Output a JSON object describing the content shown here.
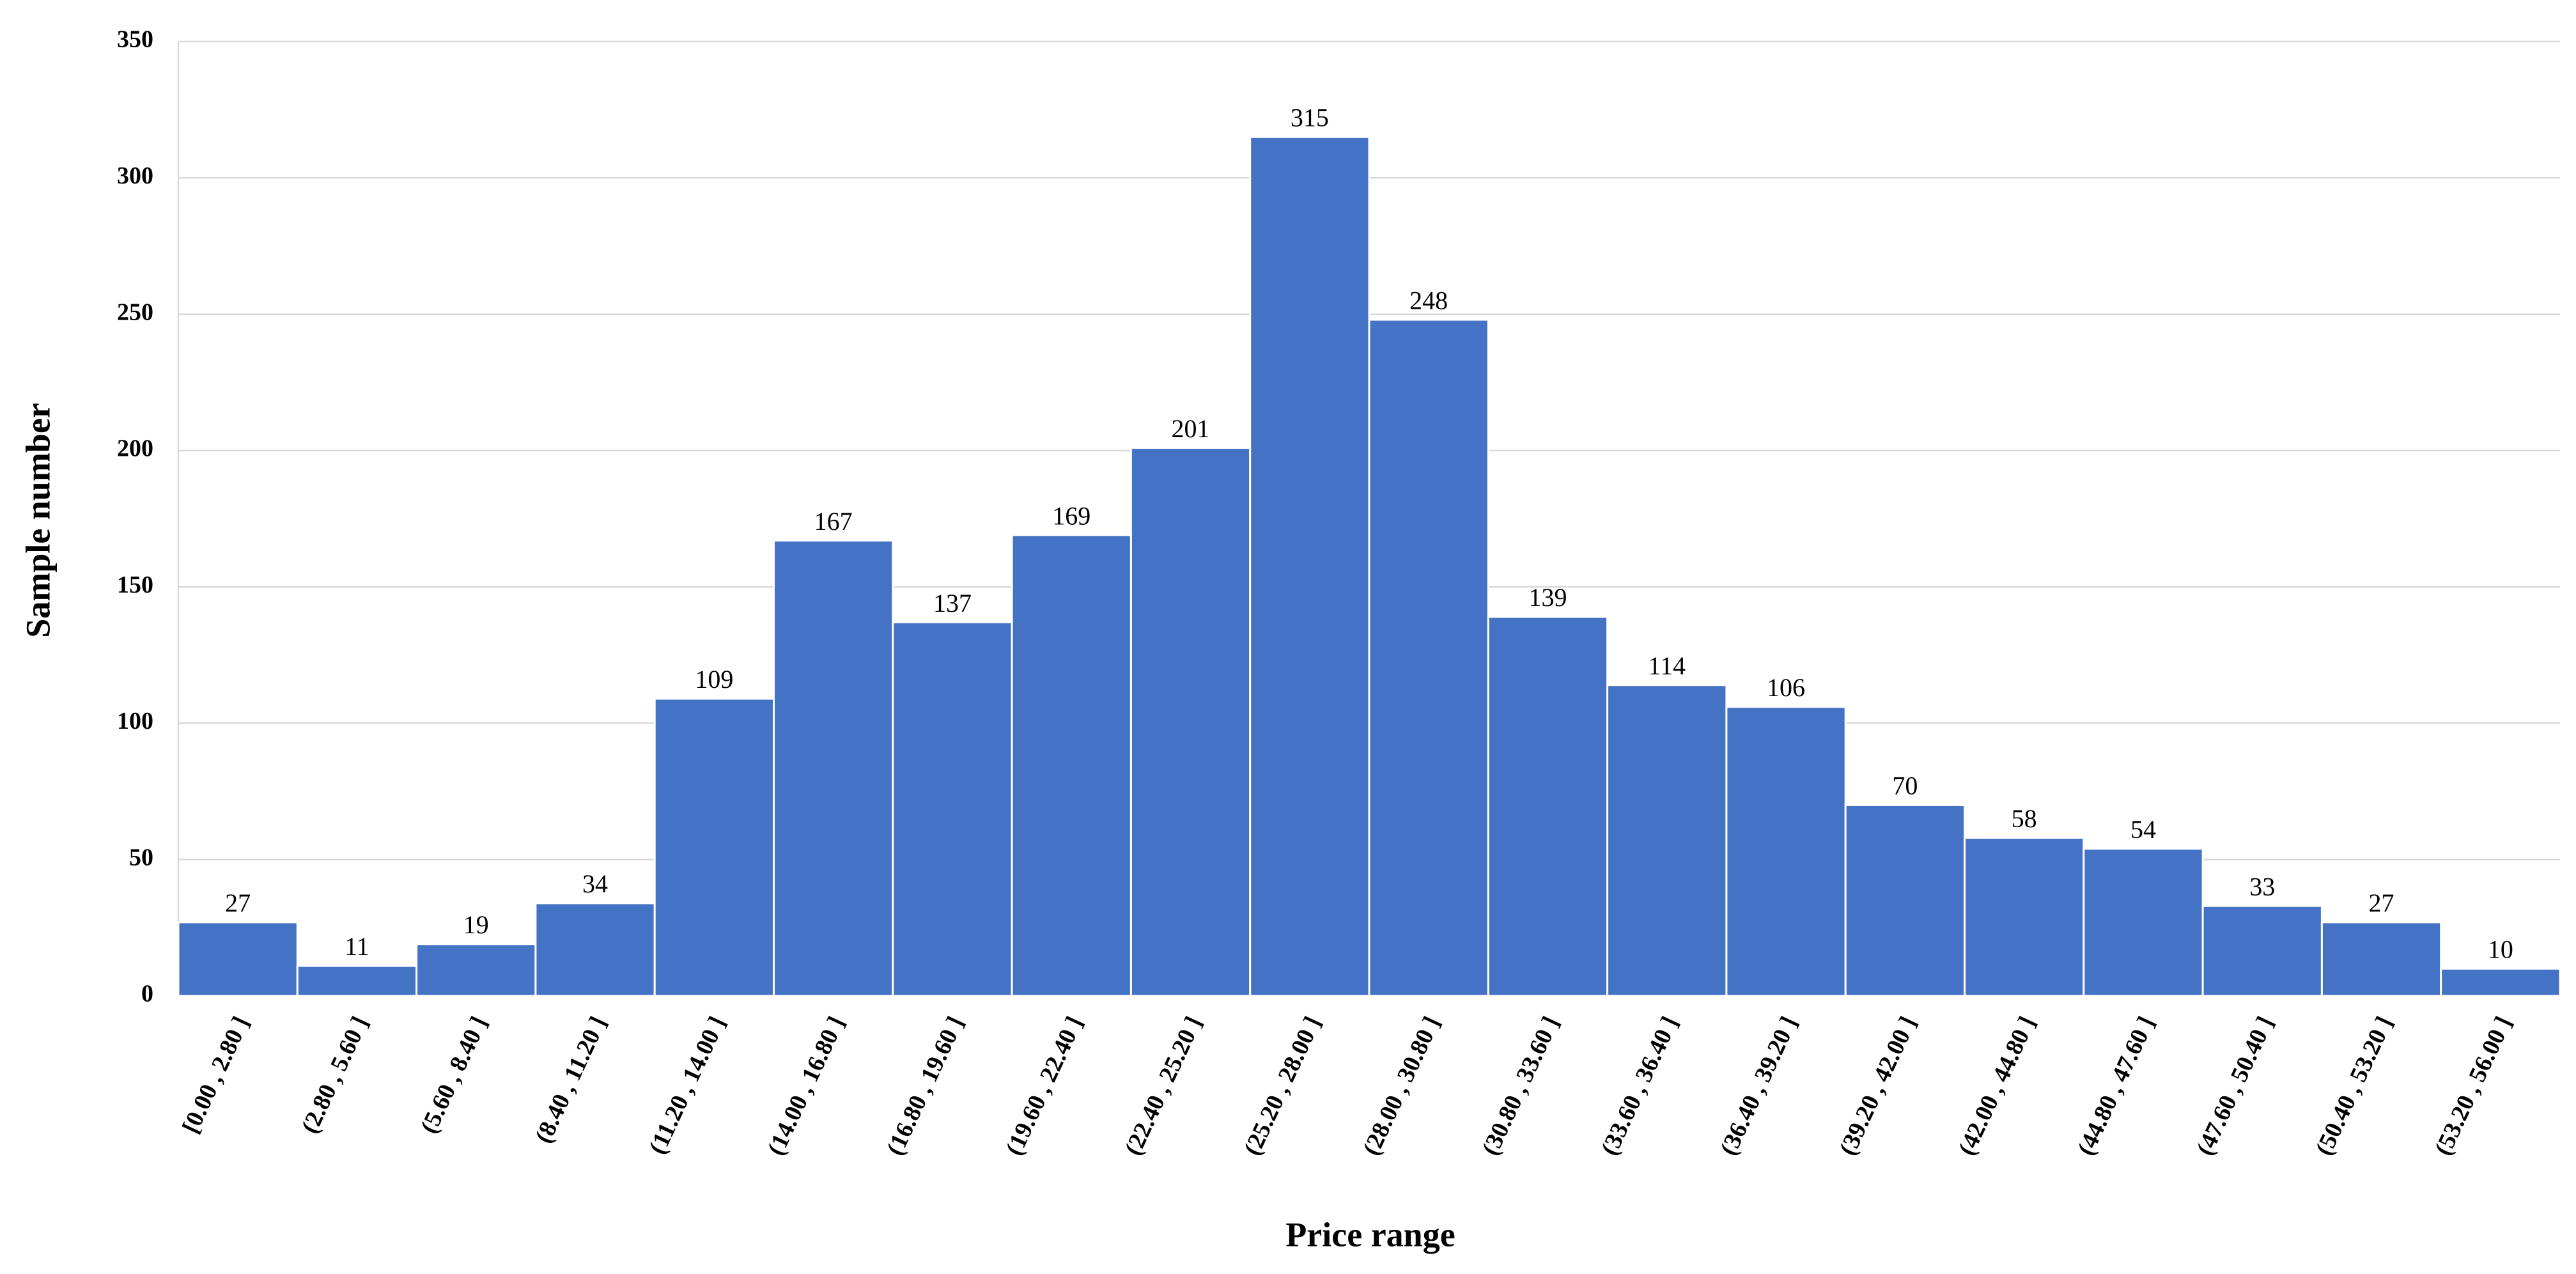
{
  "chart_data": {
    "type": "bar",
    "x_label": "Price range",
    "y_label": "Sample number",
    "categories": [
      "[0.00 , 2.80 ]",
      "(2.80 , 5.60 ]",
      "(5.60 , 8.40 ]",
      "(8.40 , 11.20 ]",
      "(11.20 , 14.00 ]",
      "(14.00 , 16.80 ]",
      "(16.80 , 19.60 ]",
      "(19.60 , 22.40 ]",
      "(22.40 , 25.20 ]",
      "(25.20 , 28.00 ]",
      "(28.00 , 30.80 ]",
      "(30.80 , 33.60 ]",
      "(33.60 , 36.40 ]",
      "(36.40 , 39.20 ]",
      "(39.20 , 42.00 ]",
      "(42.00 , 44.80 ]",
      "(44.80 , 47.60 ]",
      "(47.60 , 50.40 ]",
      "(50.40 , 53.20 ]",
      "(53.20 , 56.00 ]"
    ],
    "values": [
      27,
      11,
      19,
      34,
      109,
      167,
      137,
      169,
      201,
      315,
      248,
      139,
      114,
      106,
      70,
      58,
      54,
      33,
      27,
      10
    ],
    "color": "#4472c4",
    "ylim": [
      0,
      350
    ],
    "yticks": [
      0,
      50,
      100,
      150,
      200,
      250,
      300,
      350
    ],
    "grid": true
  }
}
